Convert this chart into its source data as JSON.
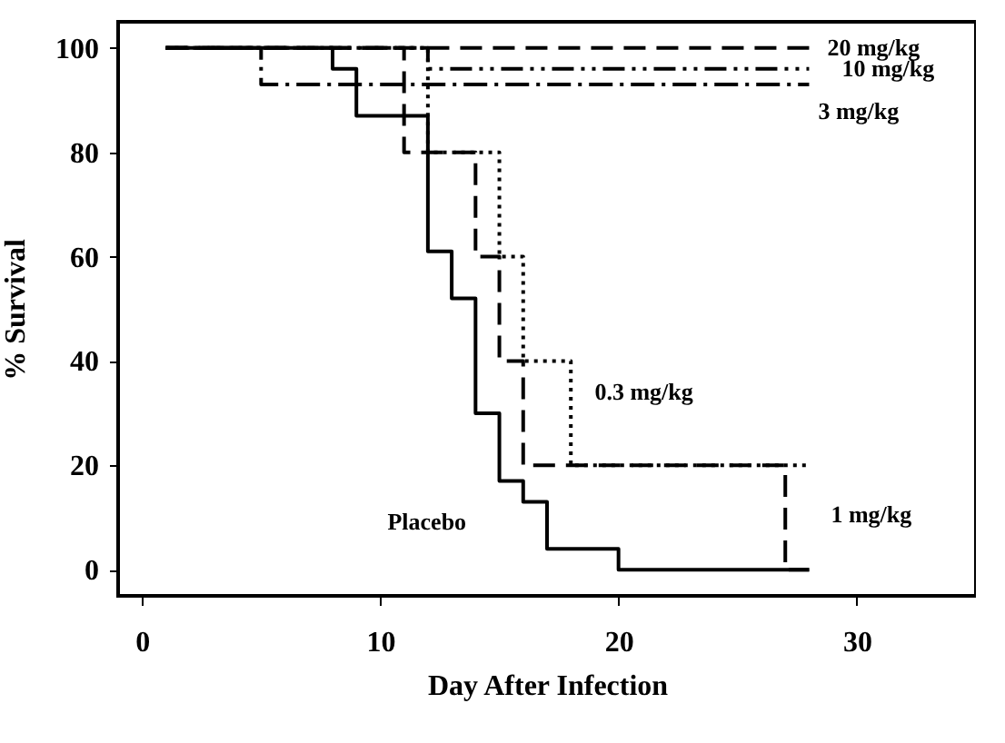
{
  "chart_data": {
    "type": "step",
    "xlabel": "Day After Infection",
    "ylabel": "% Survival",
    "xlim": [
      -1,
      35
    ],
    "ylim": [
      -5,
      105
    ],
    "xticks": [
      0,
      10,
      20,
      30
    ],
    "yticks": [
      0,
      20,
      40,
      60,
      80,
      100
    ],
    "grid": false,
    "marker": "none",
    "series": [
      {
        "name": "20 mg/kg",
        "color": "#000000",
        "line_style": "dashed",
        "x": [
          1,
          28
        ],
        "values": [
          100,
          100
        ]
      },
      {
        "name": "10 mg/kg",
        "color": "#000000",
        "line_style": "dashdotdot",
        "x": [
          1,
          12,
          28
        ],
        "values": [
          100,
          96,
          96
        ]
      },
      {
        "name": "3 mg/kg",
        "color": "#000000",
        "line_style": "dashdot",
        "x": [
          1,
          5,
          28
        ],
        "values": [
          100,
          93,
          93
        ]
      },
      {
        "name": "0.3 mg/kg",
        "color": "#000000",
        "line_style": "dotted",
        "x": [
          1,
          12,
          15,
          16,
          18,
          28
        ],
        "values": [
          100,
          80,
          60,
          40,
          20,
          20
        ]
      },
      {
        "name": "1 mg/kg",
        "color": "#000000",
        "line_style": "dashed",
        "x": [
          1,
          11,
          14,
          15,
          16,
          27,
          28
        ],
        "values": [
          100,
          80,
          60,
          40,
          20,
          0,
          0
        ]
      },
      {
        "name": "Placebo",
        "color": "#000000",
        "line_style": "solid",
        "x": [
          1,
          8,
          9,
          12,
          13,
          14,
          15,
          16,
          17,
          20,
          28
        ],
        "values": [
          100,
          96,
          87,
          61,
          52,
          30,
          17,
          13,
          4,
          0,
          0
        ]
      }
    ]
  }
}
